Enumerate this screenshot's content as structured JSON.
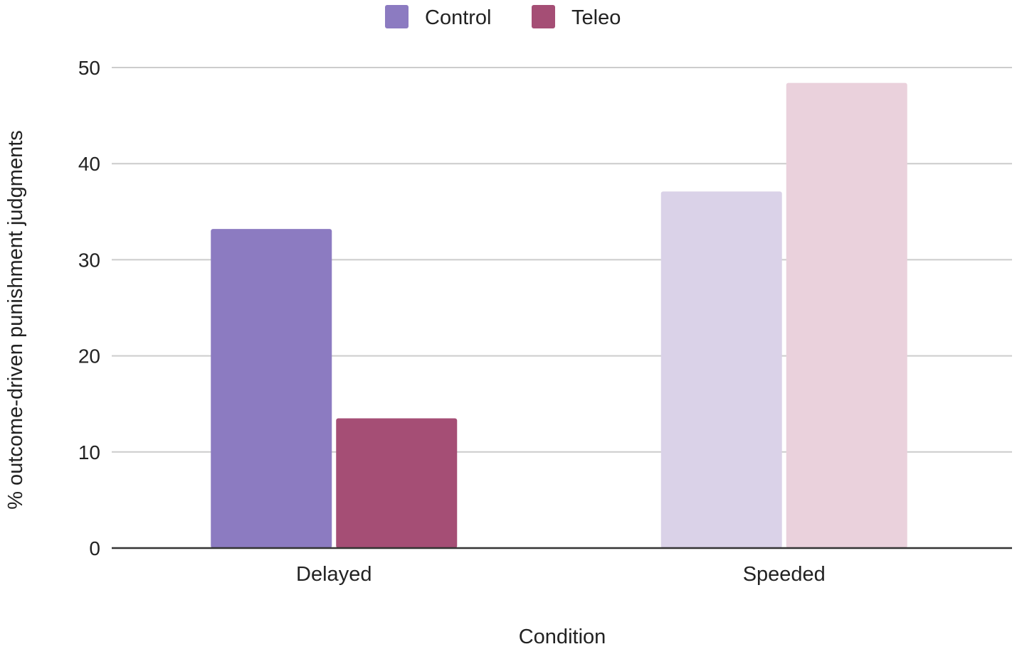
{
  "chart_data": {
    "type": "bar",
    "categories": [
      "Delayed",
      "Speeded"
    ],
    "series": [
      {
        "name": "Control",
        "values": [
          33.2,
          37.1
        ]
      },
      {
        "name": "Teleo",
        "values": [
          13.5,
          48.4
        ]
      }
    ],
    "bar_colors": [
      [
        "#8c7bc1",
        "#a54e75"
      ],
      [
        "#dad2e8",
        "#ead1dc"
      ]
    ],
    "legend_colors": [
      "#8c7bc1",
      "#a54e75"
    ],
    "legend_position": "top-center",
    "xlabel": "Condition",
    "ylabel": "% outcome-driven punishment judgments",
    "ylim": [
      0,
      50
    ],
    "yticks": [
      0,
      10,
      20,
      30,
      40,
      50
    ],
    "grid": true
  }
}
